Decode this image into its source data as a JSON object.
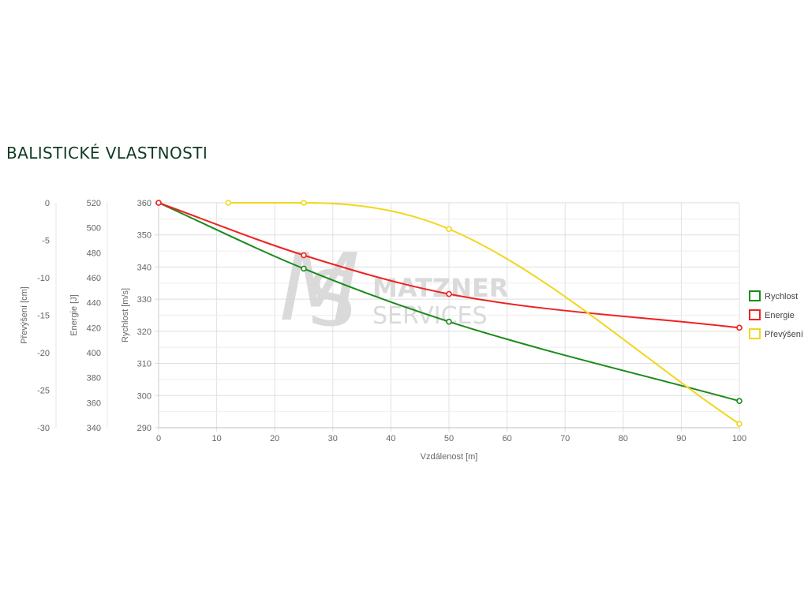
{
  "page": {
    "title": "BALISTICKÉ VLASTNOSTI"
  },
  "watermark": {
    "line1": "MATZNER",
    "line2": "SERVICES",
    "color": "#d7d7d7"
  },
  "chart_data": {
    "type": "line",
    "x": [
      0,
      25,
      50,
      100
    ],
    "xlabel": "Vzdálenost [m]",
    "xlim": [
      0,
      100
    ],
    "xticks": [
      0,
      10,
      20,
      30,
      40,
      50,
      60,
      70,
      80,
      90,
      100
    ],
    "grid": true,
    "legend_position": "right",
    "axes": {
      "rychlost": {
        "label": "Rychlost [m/s]",
        "range": [
          290,
          360
        ],
        "ticks": [
          290,
          300,
          310,
          320,
          330,
          340,
          350,
          360
        ]
      },
      "energie": {
        "label": "Energie [J]",
        "range": [
          340,
          520
        ],
        "ticks": [
          340,
          360,
          380,
          400,
          420,
          440,
          460,
          480,
          500,
          520
        ]
      },
      "prevyseni": {
        "label": "Převýšení [cm]",
        "range": [
          -30,
          0
        ],
        "ticks": [
          -30,
          -25,
          -20,
          -15,
          -10,
          -5,
          0
        ]
      }
    },
    "series": [
      {
        "name": "Rychlost",
        "axis": "rychlost",
        "color": "#1a8a1a",
        "x": [
          0,
          25,
          50,
          100
        ],
        "values": [
          360,
          339.5,
          323,
          298.3
        ]
      },
      {
        "name": "Energie",
        "axis": "energie",
        "color": "#ee2222",
        "x": [
          0,
          25,
          50,
          100
        ],
        "values": [
          520,
          478,
          447,
          420
        ]
      },
      {
        "name": "Převýšení",
        "axis": "prevyseni",
        "color": "#f2d61c",
        "x": [
          12,
          25,
          50,
          100
        ],
        "values": [
          0,
          0,
          -3.5,
          -29.5
        ]
      }
    ]
  }
}
